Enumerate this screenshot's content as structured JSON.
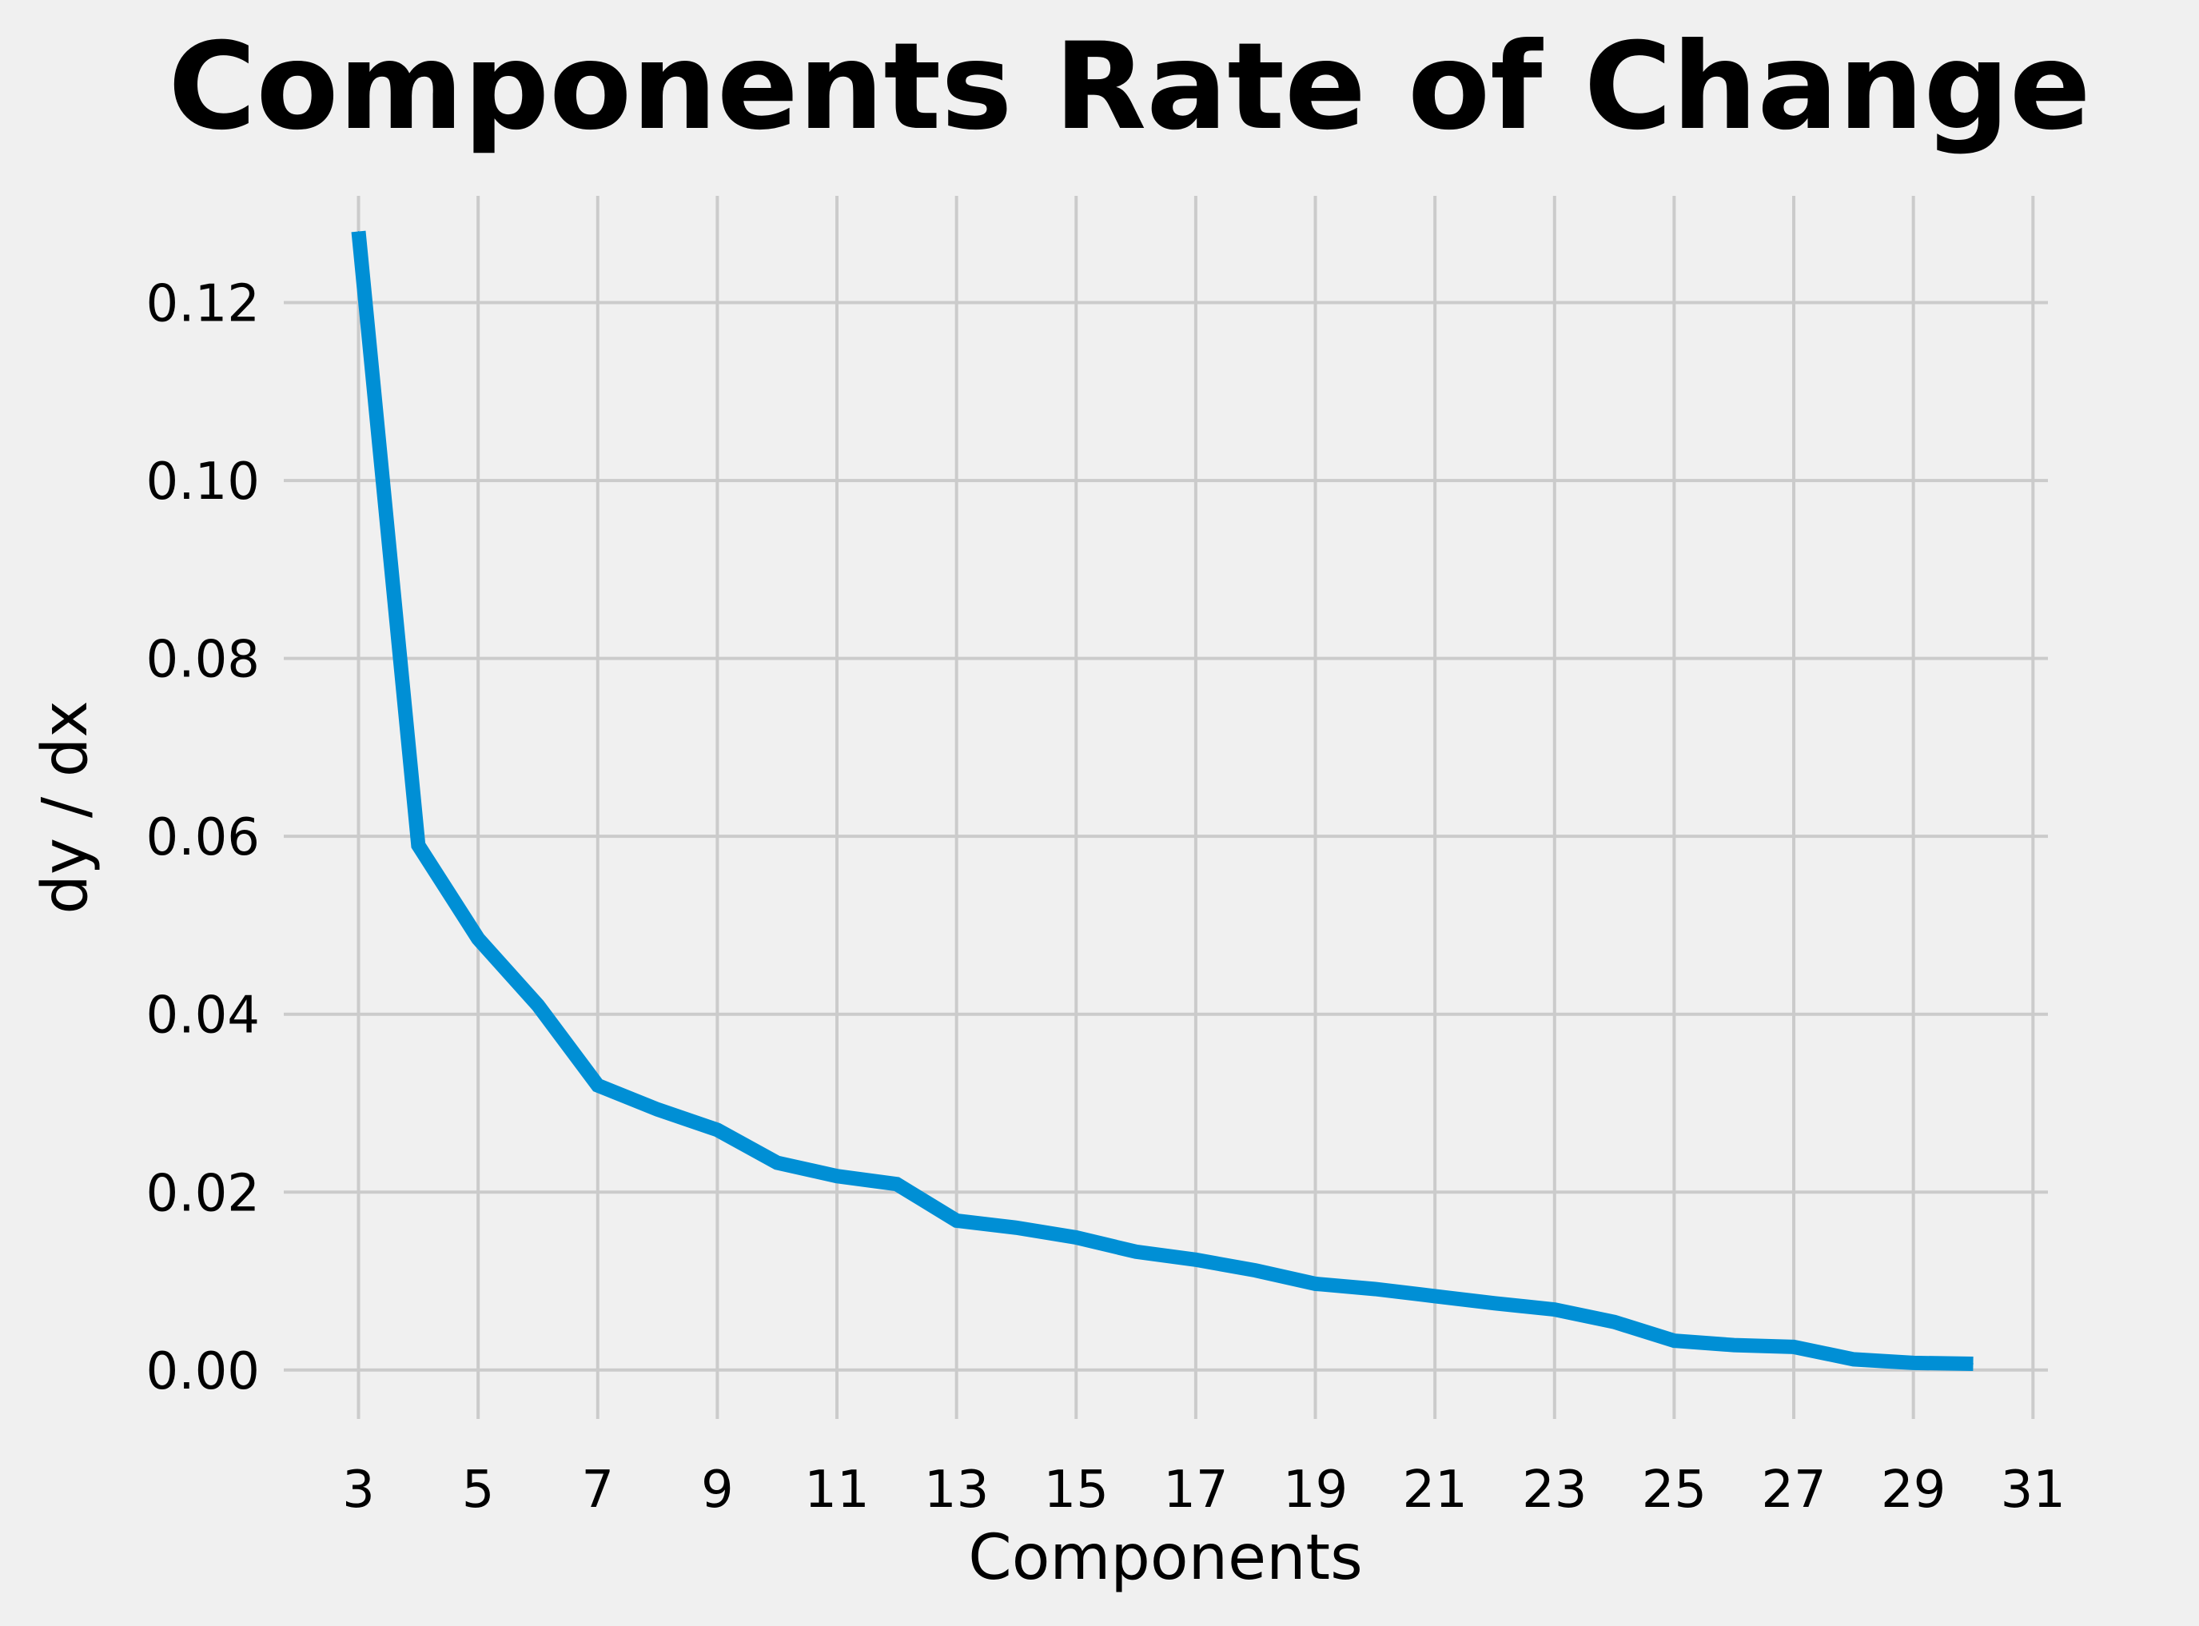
{
  "chart_data": {
    "type": "line",
    "title": "Components Rate of Change",
    "xlabel": "Components",
    "ylabel": "dy / dx",
    "xlim": [
      1.75,
      31.25
    ],
    "ylim": [
      -0.0055,
      0.132
    ],
    "xticks": [
      "3",
      "5",
      "7",
      "9",
      "11",
      "13",
      "15",
      "17",
      "19",
      "21",
      "23",
      "25",
      "27",
      "29",
      "31"
    ],
    "yticks": [
      "0.00",
      "0.02",
      "0.04",
      "0.06",
      "0.08",
      "0.10",
      "0.12"
    ],
    "grid": true,
    "series": [
      {
        "color": "#008fd5",
        "x": [
          3,
          4,
          5,
          6,
          7,
          8,
          9,
          10,
          11,
          12,
          13,
          14,
          15,
          16,
          17,
          18,
          19,
          20,
          21,
          22,
          23,
          24,
          25,
          26,
          27,
          28,
          29,
          30
        ],
        "y": [
          0.128,
          0.059,
          0.0485,
          0.041,
          0.032,
          0.0293,
          0.027,
          0.0233,
          0.0218,
          0.0209,
          0.0168,
          0.016,
          0.0149,
          0.0133,
          0.0124,
          0.0112,
          0.0097,
          0.0091,
          0.0083,
          0.0075,
          0.0068,
          0.0054,
          0.0033,
          0.0028,
          0.0026,
          0.0012,
          0.0008,
          0.0007
        ]
      }
    ]
  }
}
